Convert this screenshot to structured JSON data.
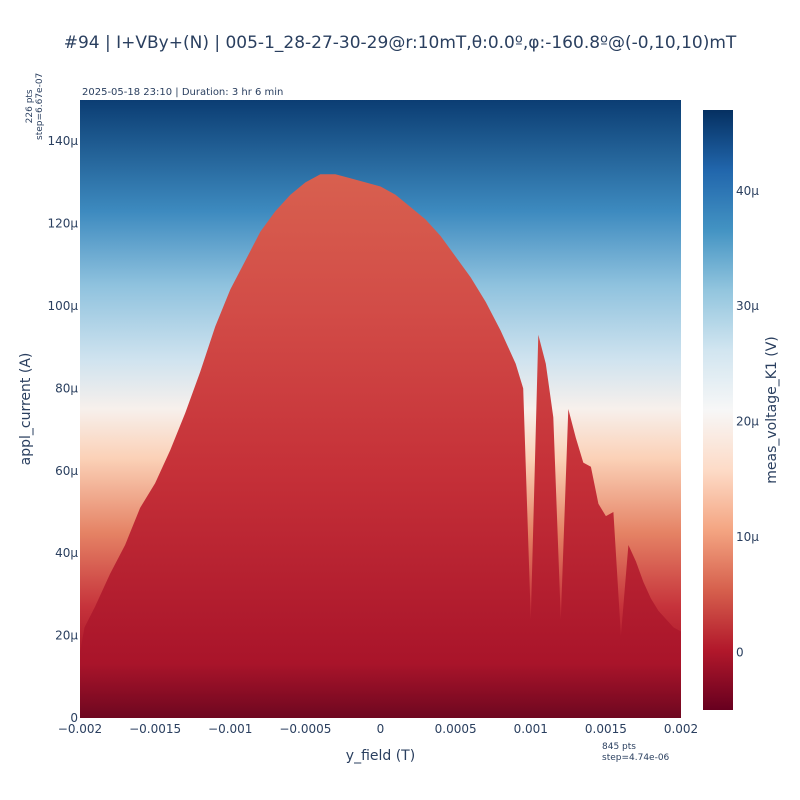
{
  "chart_data": {
    "type": "heatmap",
    "title": "#94 | I+VBy+(N) | 005-1_28-27-30-29@r:10mT,θ:0.0º,φ:-160.8º@(-0,10,10)mT",
    "info": "2025-05-18 23:10 | Duration: 3 hr 6 min",
    "xlabel": "y_field (T)",
    "ylabel": "appl_current (A)",
    "colorbar_label": "meas_voltage_K1 (V)",
    "colorscale": "RdBu",
    "xlim": [
      -0.002,
      0.002
    ],
    "ylim": [
      0,
      0.00015
    ],
    "zlim": [
      -5e-06,
      4.7e-05
    ],
    "x_ticks": [
      {
        "value": -0.002,
        "label": "−0.002"
      },
      {
        "value": -0.0015,
        "label": "−0.0015"
      },
      {
        "value": -0.001,
        "label": "−0.001"
      },
      {
        "value": -0.0005,
        "label": "−0.0005"
      },
      {
        "value": 0,
        "label": "0"
      },
      {
        "value": 0.0005,
        "label": "0.0005"
      },
      {
        "value": 0.001,
        "label": "0.001"
      },
      {
        "value": 0.0015,
        "label": "0.0015"
      },
      {
        "value": 0.002,
        "label": "0.002"
      }
    ],
    "y_ticks": [
      {
        "value": 0,
        "label": "0"
      },
      {
        "value": 2e-05,
        "label": "20μ"
      },
      {
        "value": 4e-05,
        "label": "40μ"
      },
      {
        "value": 6e-05,
        "label": "60μ"
      },
      {
        "value": 8e-05,
        "label": "80μ"
      },
      {
        "value": 0.0001,
        "label": "100μ"
      },
      {
        "value": 0.00012,
        "label": "120μ"
      },
      {
        "value": 0.00014,
        "label": "140μ"
      }
    ],
    "colorbar_ticks": [
      {
        "value": 0,
        "label": "0"
      },
      {
        "value": 1e-05,
        "label": "10μ"
      },
      {
        "value": 2e-05,
        "label": "20μ"
      },
      {
        "value": 3e-05,
        "label": "30μ"
      },
      {
        "value": 4e-05,
        "label": "40μ"
      }
    ],
    "y_points_label": [
      "226 pts",
      "step=6.67e-07"
    ],
    "x_points_label": [
      "845 pts",
      "step=4.74e-06"
    ],
    "critical_current_envelope": {
      "x": [
        -0.002,
        -0.00197,
        -0.0019,
        -0.0018,
        -0.0017,
        -0.0016,
        -0.0015,
        -0.0014,
        -0.0013,
        -0.0012,
        -0.0011,
        -0.001,
        -0.0009,
        -0.0008,
        -0.0007,
        -0.0006,
        -0.0005,
        -0.0004,
        -0.0003,
        -0.0002,
        -0.0001,
        0,
        0.0001,
        0.0002,
        0.0003,
        0.0004,
        0.0005,
        0.0006,
        0.0007,
        0.0008,
        0.0009,
        0.00095,
        0.001,
        0.00105,
        0.0011,
        0.00115,
        0.0012,
        0.00125,
        0.0013,
        0.00135,
        0.0014,
        0.00145,
        0.0015,
        0.00155,
        0.0016,
        0.00165,
        0.0017,
        0.00175,
        0.0018,
        0.00185,
        0.0019,
        0.00195,
        0.002
      ],
      "y": [
        1.6e-05,
        2.2e-05,
        2.7e-05,
        3.5e-05,
        4.2e-05,
        5.1e-05,
        5.7e-05,
        6.5e-05,
        7.4e-05,
        8.4e-05,
        9.5e-05,
        0.000104,
        0.000111,
        0.000118,
        0.000123,
        0.000127,
        0.00013,
        0.000132,
        0.000132,
        0.000131,
        0.00013,
        0.000129,
        0.000127,
        0.000124,
        0.000121,
        0.000117,
        0.000112,
        0.000107,
        0.000101,
        9.4e-05,
        8.6e-05,
        8e-05,
        2.4e-05,
        9.3e-05,
        8.6e-05,
        7.3e-05,
        2.4e-05,
        7.5e-05,
        6.8e-05,
        6.2e-05,
        6.1e-05,
        5.2e-05,
        4.9e-05,
        5e-05,
        2e-05,
        4.2e-05,
        3.8e-05,
        3.3e-05,
        2.9e-05,
        2.6e-05,
        2.4e-05,
        2.2e-05,
        2.1e-05
      ]
    }
  }
}
